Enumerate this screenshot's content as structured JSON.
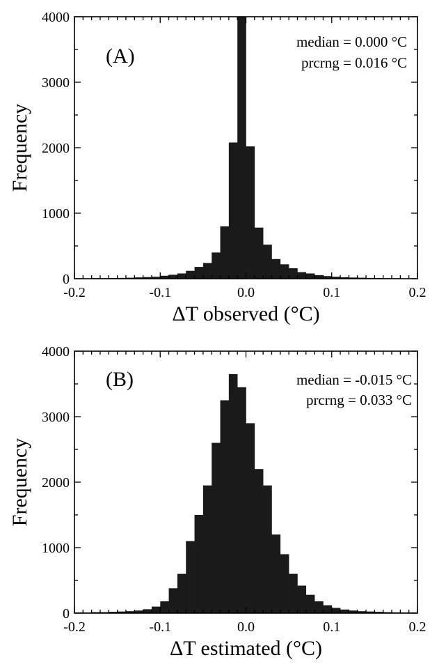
{
  "chart_data": [
    {
      "type": "bar",
      "panel_label": "(A)",
      "xlabel": "ΔT observed   (°C)",
      "ylabel": "Frequency",
      "xlim": [
        -0.2,
        0.2
      ],
      "ylim": [
        0,
        4000
      ],
      "xticks": [
        "-0.2",
        "-0.1",
        "0.0",
        "0.1",
        "0.2"
      ],
      "yticks": [
        "0",
        "1000",
        "2000",
        "3000",
        "4000"
      ],
      "annotations": [
        "median = 0.000 °C",
        "prcrng = 0.016 °C"
      ],
      "bin_width": 0.01,
      "bin_starts": [
        -0.2,
        -0.19,
        -0.18,
        -0.17,
        -0.16,
        -0.15,
        -0.14,
        -0.13,
        -0.12,
        -0.11,
        -0.1,
        -0.09,
        -0.08,
        -0.07,
        -0.06,
        -0.05,
        -0.04,
        -0.03,
        -0.02,
        -0.01,
        0.0,
        0.01,
        0.02,
        0.03,
        0.04,
        0.05,
        0.06,
        0.07,
        0.08,
        0.09,
        0.1,
        0.11,
        0.12,
        0.13,
        0.14,
        0.15,
        0.16,
        0.17,
        0.18,
        0.19
      ],
      "values": [
        5,
        5,
        8,
        8,
        10,
        12,
        15,
        20,
        25,
        30,
        45,
        60,
        80,
        120,
        180,
        240,
        400,
        800,
        2080,
        4000,
        2020,
        780,
        520,
        300,
        220,
        160,
        100,
        80,
        55,
        40,
        30,
        22,
        18,
        15,
        12,
        10,
        8,
        6,
        5,
        5
      ]
    },
    {
      "type": "bar",
      "panel_label": "(B)",
      "xlabel": "ΔT estimated   (°C)",
      "ylabel": "Frequency",
      "xlim": [
        -0.2,
        0.2
      ],
      "ylim": [
        0,
        4000
      ],
      "xticks": [
        "-0.2",
        "-0.1",
        "0.0",
        "0.1",
        "0.2"
      ],
      "yticks": [
        "0",
        "1000",
        "2000",
        "3000",
        "4000"
      ],
      "annotations": [
        "median = -0.015 °C",
        "prcrng =  0.033 °C"
      ],
      "bin_width": 0.01,
      "bin_starts": [
        -0.2,
        -0.19,
        -0.18,
        -0.17,
        -0.16,
        -0.15,
        -0.14,
        -0.13,
        -0.12,
        -0.11,
        -0.1,
        -0.09,
        -0.08,
        -0.07,
        -0.06,
        -0.05,
        -0.04,
        -0.03,
        -0.02,
        -0.01,
        0.0,
        0.01,
        0.02,
        0.03,
        0.04,
        0.05,
        0.06,
        0.07,
        0.08,
        0.09,
        0.1,
        0.11,
        0.12,
        0.13,
        0.14,
        0.15,
        0.16,
        0.17,
        0.18,
        0.19
      ],
      "values": [
        10,
        10,
        15,
        15,
        20,
        25,
        30,
        40,
        60,
        100,
        180,
        380,
        600,
        1100,
        1500,
        1950,
        2600,
        3250,
        3650,
        3450,
        2900,
        2200,
        1950,
        1200,
        900,
        600,
        420,
        280,
        180,
        120,
        80,
        55,
        40,
        30,
        25,
        20,
        15,
        12,
        10,
        10
      ]
    }
  ]
}
